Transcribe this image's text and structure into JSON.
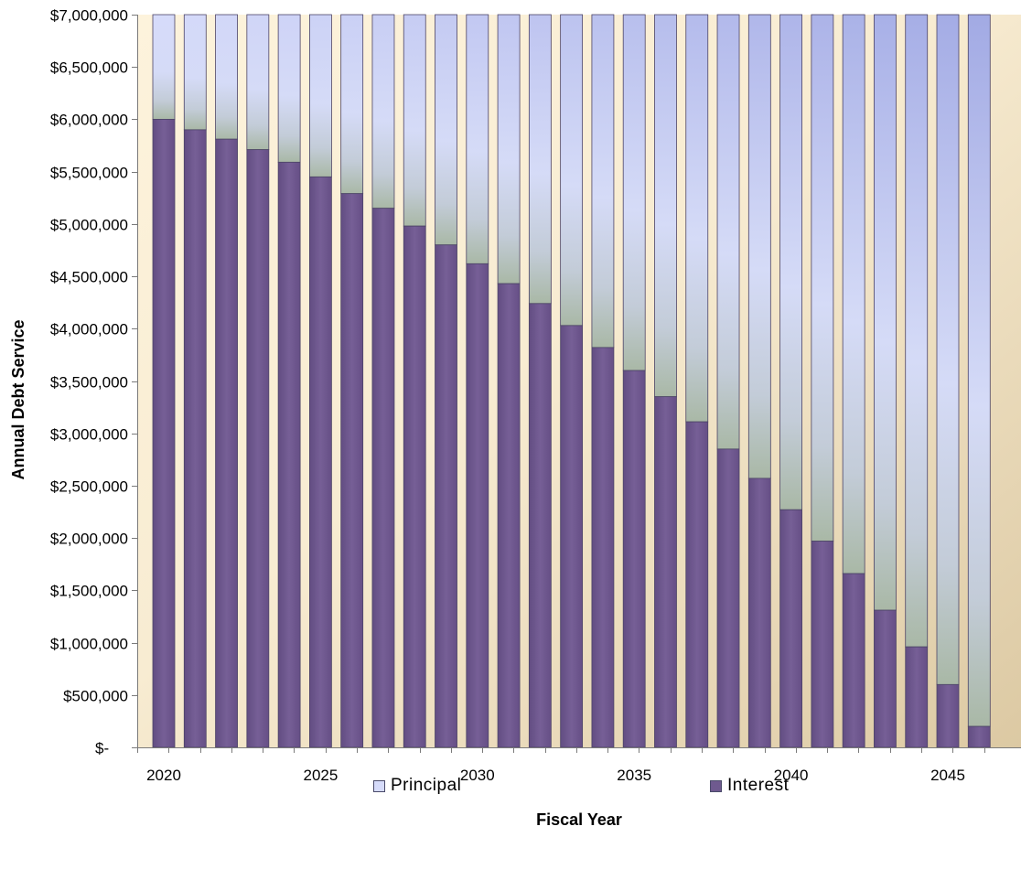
{
  "chart_data": {
    "type": "bar",
    "stacked": true,
    "xlabel": "Fiscal Year",
    "ylabel": "Annual Debt Service",
    "ylim": [
      0,
      7000000
    ],
    "y_tick_labels": [
      "$-",
      "$500,000",
      "$1,000,000",
      "$1,500,000",
      "$2,000,000",
      "$2,500,000",
      "$3,000,000",
      "$3,500,000",
      "$4,000,000",
      "$4,500,000",
      "$5,000,000",
      "$5,500,000",
      "$6,000,000",
      "$6,500,000",
      "$7,000,000"
    ],
    "y_tick_values": [
      0,
      500000,
      1000000,
      1500000,
      2000000,
      2500000,
      3000000,
      3500000,
      4000000,
      4500000,
      5000000,
      5500000,
      6000000,
      6500000,
      7000000
    ],
    "x_tick_labels": [
      "2020",
      "2025",
      "2030",
      "2035",
      "2040",
      "2045"
    ],
    "categories": [
      "2020",
      "2021",
      "2022",
      "2023",
      "2024",
      "2025",
      "2026",
      "2027",
      "2028",
      "2029",
      "2030",
      "2031",
      "2032",
      "2033",
      "2034",
      "2035",
      "2036",
      "2037",
      "2038",
      "2039",
      "2040",
      "2041",
      "2042",
      "2043",
      "2044",
      "2045",
      "2046"
    ],
    "series": [
      {
        "name": "Interest",
        "color": "#6f5a8f",
        "values": [
          6000000,
          5900000,
          5810000,
          5710000,
          5590000,
          5450000,
          5290000,
          5150000,
          4980000,
          4800000,
          4620000,
          4430000,
          4240000,
          4030000,
          3820000,
          3600000,
          3350000,
          3110000,
          2850000,
          2570000,
          2270000,
          1970000,
          1660000,
          1310000,
          960000,
          600000,
          200000
        ]
      },
      {
        "name": "Principal",
        "color": "#c9cff4",
        "values": [
          1000000,
          1100000,
          1190000,
          1290000,
          1410000,
          1550000,
          1710000,
          1850000,
          2020000,
          2200000,
          2380000,
          2570000,
          2760000,
          2970000,
          3180000,
          3400000,
          3650000,
          3890000,
          4150000,
          4430000,
          4730000,
          5030000,
          5340000,
          5690000,
          6040000,
          6400000,
          6800000
        ]
      }
    ],
    "legend": {
      "position": "bottom",
      "entries": [
        "Principal",
        "Interest"
      ]
    },
    "grid": false
  }
}
